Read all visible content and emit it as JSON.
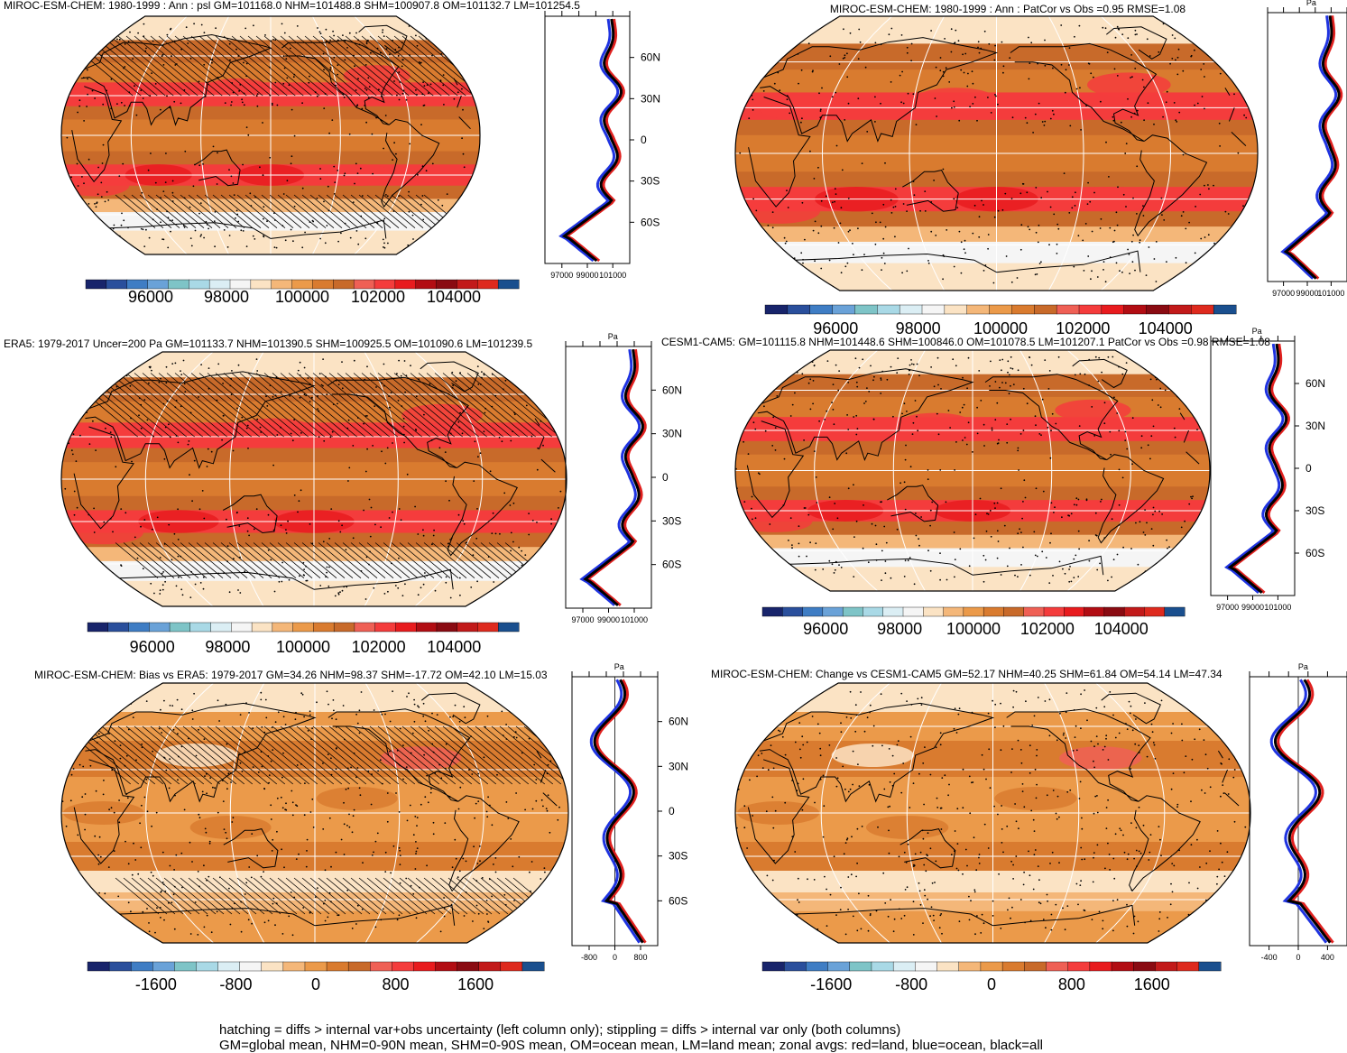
{
  "footnote": {
    "line1": "hatching = diffs > internal var+obs uncertainty (left column only); stippling = diffs > internal var only (both columns)",
    "line2": "GM=global mean, NHM=0-90N mean, SHM=0-90S mean, OM=ocean mean, LM=land mean; zonal avgs: red=land, blue=ocean, black=all"
  },
  "chart_data": [
    {
      "id": "p1",
      "type": "heatmap",
      "kind": "abs",
      "title": "MIROC-ESM-CHEM: 1980-1999 : Ann : psl GM=101168.0 NHM=101488.8 SHM=100907.8 OM=101132.7 LM=101254.5",
      "colorbar_ticks": [
        "96000",
        "98000",
        "100000",
        "102000",
        "104000"
      ],
      "zonal_xticks": [
        "97000",
        "99000",
        "101000"
      ],
      "zonal_unit": "",
      "lat_ticks": [
        "60N",
        "30N",
        "0",
        "30S",
        "60S"
      ],
      "hatching": true,
      "stippling": true
    },
    {
      "id": "p2",
      "type": "heatmap",
      "kind": "abs",
      "title": "MIROC-ESM-CHEM: 1980-1999 : Ann : PatCor vs Obs =0.95 RMSE=1.08",
      "colorbar_ticks": [
        "96000",
        "98000",
        "100000",
        "102000",
        "104000"
      ],
      "zonal_xticks": [
        "97000",
        "99000",
        "101000"
      ],
      "zonal_unit": "Pa",
      "lat_ticks": [],
      "hatching": false,
      "stippling": true
    },
    {
      "id": "p3",
      "type": "heatmap",
      "kind": "abs",
      "title": "ERA5: 1979-2017 Uncer=200 Pa GM=101133.7 NHM=101390.5 SHM=100925.5 OM=101090.6 LM=101239.5",
      "colorbar_ticks": [
        "96000",
        "98000",
        "100000",
        "102000",
        "104000"
      ],
      "zonal_xticks": [
        "97000",
        "99000",
        "101000"
      ],
      "zonal_unit": "Pa",
      "lat_ticks": [
        "60N",
        "30N",
        "0",
        "30S",
        "60S"
      ],
      "hatching": true,
      "stippling": true
    },
    {
      "id": "p4",
      "type": "heatmap",
      "kind": "abs",
      "title": "CESM1-CAM5: GM=101115.8 NHM=101448.6 SHM=100846.0 OM=101078.5 LM=101207.1 PatCor vs Obs =0.98 RMSE=1.08",
      "colorbar_ticks": [
        "96000",
        "98000",
        "100000",
        "102000",
        "104000"
      ],
      "zonal_xticks": [
        "97000",
        "99000",
        "101000"
      ],
      "zonal_unit": "Pa",
      "lat_ticks": [
        "60N",
        "30N",
        "0",
        "30S",
        "60S"
      ],
      "hatching": false,
      "stippling": true
    },
    {
      "id": "p5",
      "type": "heatmap",
      "kind": "diff",
      "title": "MIROC-ESM-CHEM: Bias vs ERA5: 1979-2017 GM=34.26 NHM=98.37 SHM=-17.72 OM=42.10 LM=15.03",
      "colorbar_ticks": [
        "-1600",
        "-800",
        "0",
        "800",
        "1600"
      ],
      "zonal_xticks": [
        "-800",
        "0",
        "800"
      ],
      "zonal_unit": "Pa",
      "lat_ticks": [
        "60N",
        "30N",
        "0",
        "30S",
        "60S"
      ],
      "hatching": true,
      "stippling": true
    },
    {
      "id": "p6",
      "type": "heatmap",
      "kind": "diff",
      "title": "MIROC-ESM-CHEM: Change vs CESM1-CAM5 GM=52.17 NHM=40.25 SHM=61.84 OM=54.14 LM=47.34",
      "colorbar_ticks": [
        "-1600",
        "-800",
        "0",
        "800",
        "1600"
      ],
      "zonal_xticks": [
        "-400",
        "0",
        "400"
      ],
      "zonal_unit": "Pa",
      "lat_ticks": [],
      "hatching": false,
      "stippling": true
    }
  ],
  "colors": {
    "abs_levels": [
      "#18246b",
      "#2a4f9c",
      "#3f7dc4",
      "#6aa2d8",
      "#7ec4c7",
      "#a9d9e6",
      "#dbeef4",
      "#f5f5f5",
      "#fbe3c4",
      "#f4b779",
      "#eb9a4a",
      "#d97b2f",
      "#c86a2a",
      "#ef6055",
      "#f43c3c",
      "#e81b1e",
      "#b20d13",
      "#8a0b12",
      "#c21a1a",
      "#de2a1e",
      "#1a4f8e"
    ],
    "diff_levels": [
      "#18246b",
      "#2a4f9c",
      "#3f7dc4",
      "#6aa2d8",
      "#7ec4c7",
      "#a9d9e6",
      "#dbeef4",
      "#f5f5f5",
      "#fbe3c4",
      "#f4b779",
      "#eb9a4a",
      "#d97b2f",
      "#c86a2a",
      "#ef6055",
      "#f43c3c",
      "#e81b1e",
      "#b20d13",
      "#8a0b12",
      "#c21a1a",
      "#de2a1e",
      "#1a4f8e"
    ],
    "land": "#e0201e",
    "ocean": "#1f33e0",
    "all": "#000000"
  }
}
